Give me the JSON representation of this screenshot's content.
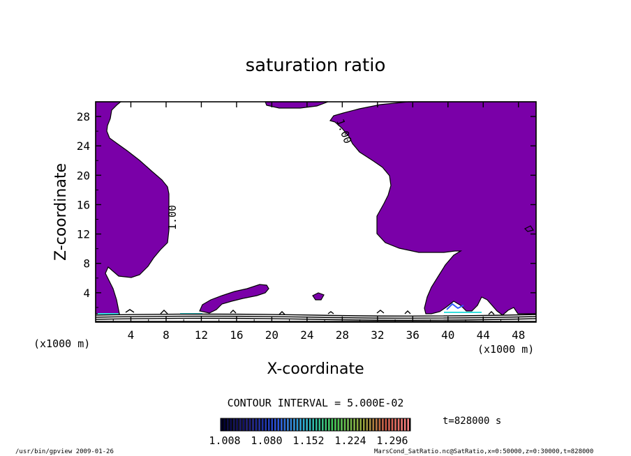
{
  "chart_data": {
    "type": "heatmap",
    "title": "saturation ratio",
    "xlabel": "X-coordinate",
    "ylabel": "Z-coordinate",
    "x_unit": "(x1000 m)",
    "y_unit": "(x1000 m)",
    "xlim": [
      0,
      50
    ],
    "ylim": [
      0,
      30
    ],
    "x_ticks": [
      4,
      8,
      12,
      16,
      20,
      24,
      28,
      32,
      36,
      40,
      44,
      48
    ],
    "y_ticks": [
      4,
      8,
      12,
      16,
      20,
      24,
      28
    ],
    "contour_labels": [
      "1.00",
      "1.00"
    ],
    "contour_interval": "CONTOUR INTERVAL = 5.000E-02",
    "colorbar_ticks": [
      "1.008",
      "1.080",
      "1.152",
      "1.224",
      "1.296"
    ],
    "colorbar_range": [
      1.008,
      1.296
    ],
    "time_label": "t=828000 s",
    "colors": {
      "saturated_fill": "#7a00a8",
      "colorbar_low": "#000033",
      "colorbar_high": "#ff8080"
    }
  },
  "footer": {
    "left": "/usr/bin/gpview  2009-01-26",
    "right": "MarsCond_SatRatio.nc@SatRatio,x=0:50000,z=0:30000,t=828000"
  }
}
